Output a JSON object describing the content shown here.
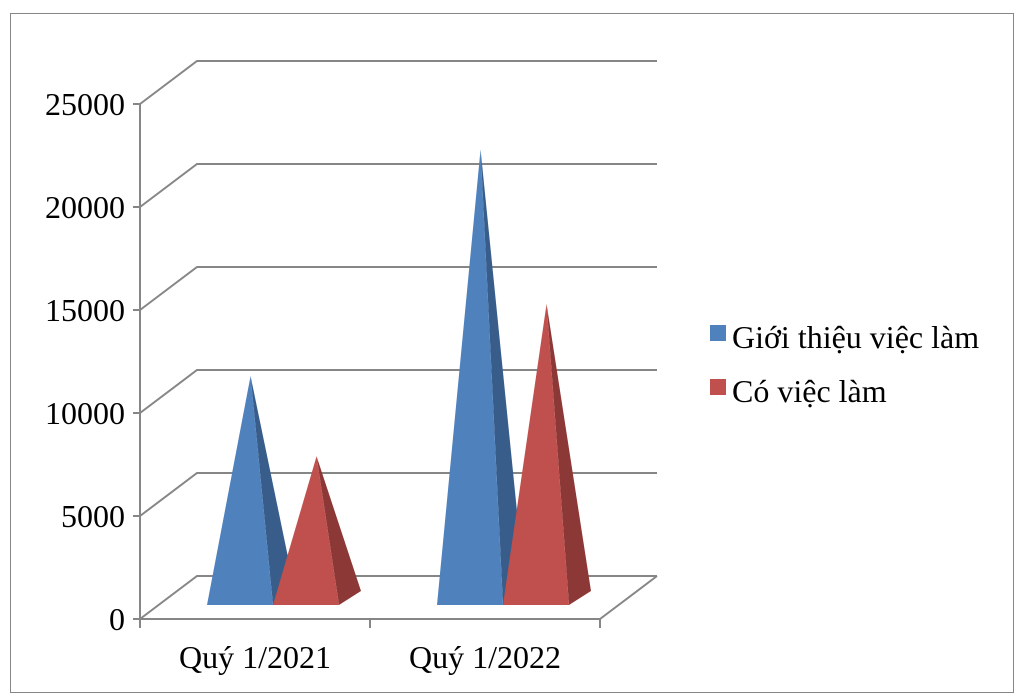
{
  "chart_data": {
    "type": "bar",
    "style": "3d-pyramid",
    "categories": [
      "Quý 1/2021",
      "Quý 1/2022"
    ],
    "series": [
      {
        "name": "Giới thiệu việc làm",
        "values": [
          11800,
          22800
        ],
        "color": "#4f81bd",
        "side_color": "#385d8a"
      },
      {
        "name": "Có việc làm",
        "values": [
          7900,
          15300
        ],
        "color": "#c0504d",
        "side_color": "#8c3836"
      }
    ],
    "y_ticks": [
      "0",
      "5000",
      "10000",
      "15000",
      "20000",
      "25000"
    ],
    "ylim": [
      0,
      25000
    ],
    "grid": true,
    "legend_position": "right",
    "gridline_color": "#868686"
  }
}
